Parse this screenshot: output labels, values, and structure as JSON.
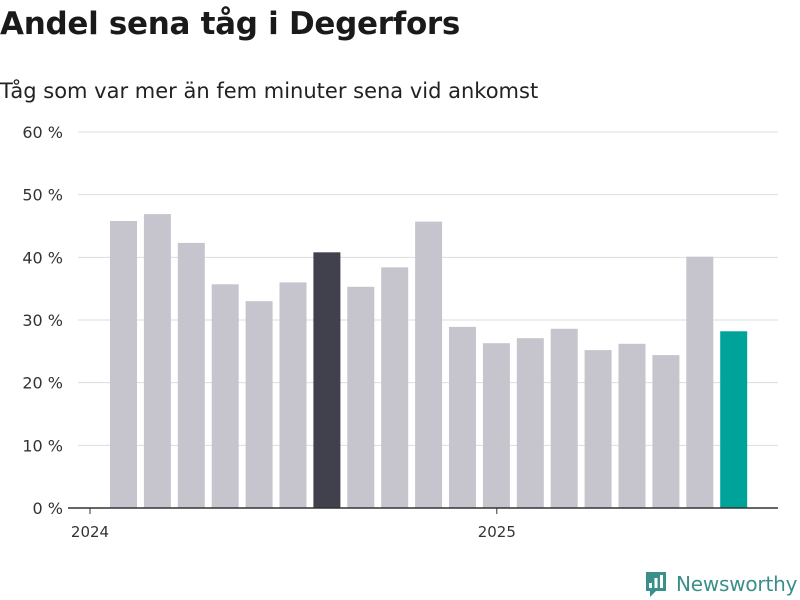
{
  "title": "Andel sena tåg i Degerfors",
  "subtitle": "Tåg som var mer än fem minuter sena vid ankomst",
  "brand": "Newsworthy",
  "colors": {
    "bar_default": "#c6c5cd",
    "bar_highlight": "#41404d",
    "bar_latest": "#00a39a",
    "grid": "#dddddd",
    "axis": "#333333",
    "brand": "#3a8f8a"
  },
  "chart_data": {
    "type": "bar",
    "title": "Andel sena tåg i Degerfors",
    "subtitle": "Tåg som var mer än fem minuter sena vid ankomst",
    "y_unit": "%",
    "ylim": [
      0,
      60
    ],
    "y_ticks": [
      0,
      10,
      20,
      30,
      40,
      50,
      60
    ],
    "y_tick_labels": [
      "0 %",
      "10 %",
      "20 %",
      "30 %",
      "40 %",
      "50 %",
      "60 %"
    ],
    "x_tick_labels": [
      "2024",
      "2025"
    ],
    "x_tick_positions": [
      0,
      12
    ],
    "grid": true,
    "values": [
      45.8,
      46.9,
      42.3,
      35.7,
      33.0,
      36.0,
      40.8,
      35.3,
      38.4,
      45.7,
      28.9,
      26.3,
      27.1,
      28.6,
      25.2,
      26.2,
      24.4,
      40.1,
      28.2
    ],
    "highlight_index": 6,
    "latest_index": 18
  }
}
